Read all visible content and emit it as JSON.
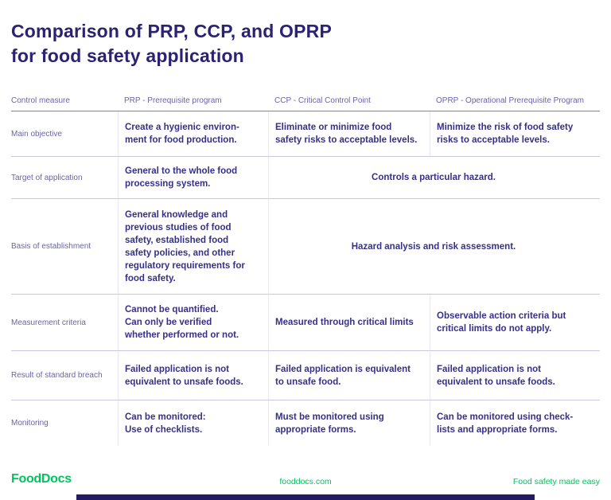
{
  "page": {
    "title": "Comparison of PRP, CCP, and OPRP\nfor food safety application"
  },
  "table": {
    "headers": [
      "Control measure",
      "PRP - Prerequisite program",
      "CCP - Critical Control Point",
      "OPRP - Operational Prerequisite Program"
    ],
    "rows": [
      {
        "label": "Main objective",
        "prp": "Create a hygienic environ-\nment for food production.",
        "ccp": "Eliminate or minimize food\nsafety risks to acceptable levels.",
        "oprp": "Minimize the risk of food safety\nrisks to acceptable levels."
      },
      {
        "label": "Target of application",
        "prp": "General to the whole food\nprocessing system.",
        "merged": "Controls a particular hazard."
      },
      {
        "label": "Basis of establishment",
        "prp": "General knowledge and\nprevious studies of food\nsafety, established food\nsafety policies, and other\nregulatory requirements for\nfood safety.",
        "merged": "Hazard analysis and risk assessment."
      },
      {
        "label": "Measurement criteria",
        "prp": "Cannot be quantified.\nCan only be verified\nwhether performed or not.",
        "ccp": "Measured through critical limits",
        "oprp": "Observable action criteria but\ncritical limits do not apply."
      },
      {
        "label": "Result of standard breach",
        "prp": "Failed application is not\nequivalent to unsafe foods.",
        "ccp": "Failed application is equivalent\nto unsafe food.",
        "oprp": "Failed application is not\nequivalent to unsafe foods."
      },
      {
        "label": "Monitoring",
        "prp": "Can be monitored:\nUse of checklists.",
        "ccp": "Must be monitored using\nappropriate forms.",
        "oprp": "Can be monitored using check-\nlists and appropriate forms."
      }
    ]
  },
  "footer": {
    "logo": "FoodDocs",
    "website": "fooddocs.com",
    "tagline": "Food safety made easy"
  },
  "colors": {
    "title": "#2b2274",
    "cell_text": "#36308a",
    "label_text": "#6a63ab",
    "accent_green": "#00c45e",
    "bottom_bar": "#231c64"
  }
}
